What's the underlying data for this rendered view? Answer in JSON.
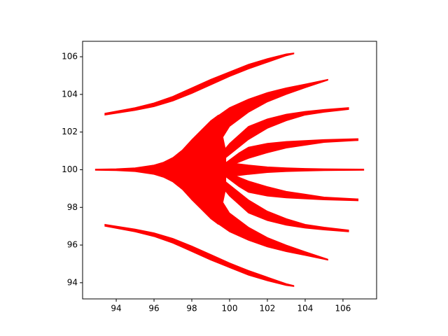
{
  "chart_data": {
    "type": "area",
    "xlim": [
      92.22,
      107.78
    ],
    "ylim": [
      93.14,
      106.82
    ],
    "xticks": [
      94,
      96,
      98,
      100,
      102,
      104,
      106
    ],
    "yticks": [
      94,
      96,
      98,
      100,
      102,
      104,
      106
    ],
    "grid": false,
    "series": [
      {
        "color": "#ff0000",
        "x": [
          93.4,
          95,
          96,
          97,
          98,
          99,
          100,
          101,
          102,
          103,
          103.4
        ],
        "upper": [
          103.0,
          103.3,
          103.55,
          103.9,
          104.35,
          104.8,
          105.2,
          105.6,
          105.9,
          106.15,
          106.2
        ],
        "lower": [
          102.9,
          103.15,
          103.35,
          103.65,
          104.05,
          104.5,
          104.95,
          105.35,
          105.7,
          106.05,
          106.15
        ]
      },
      {
        "color": "#ff0000",
        "x": [
          93.4,
          95,
          96,
          97,
          98,
          99,
          100,
          101,
          102,
          103,
          103.4
        ],
        "upper": [
          97.1,
          96.85,
          96.65,
          96.35,
          95.95,
          95.5,
          95.05,
          94.65,
          94.3,
          93.95,
          93.85
        ],
        "lower": [
          97.0,
          96.7,
          96.45,
          96.1,
          95.65,
          95.2,
          94.8,
          94.4,
          94.1,
          93.85,
          93.8
        ]
      },
      {
        "color": "#ff0000",
        "x": [
          92.9,
          94,
          95,
          96,
          96.5,
          97,
          97.5,
          98,
          98.5,
          99,
          99.4,
          99.8
        ],
        "upper": [
          100.03,
          100.05,
          100.1,
          100.25,
          100.4,
          100.65,
          101.05,
          101.6,
          102.1,
          102.6,
          102.9,
          101.0
        ],
        "lower": [
          99.97,
          99.95,
          99.9,
          99.75,
          99.6,
          99.35,
          98.95,
          98.4,
          97.9,
          97.4,
          97.1,
          99.0
        ]
      },
      {
        "color": "#ff0000",
        "x": [
          99,
          99.5,
          100,
          101,
          102,
          103,
          104,
          105.2
        ],
        "upper": [
          102.6,
          102.95,
          103.3,
          103.75,
          104.1,
          104.35,
          104.55,
          104.8
        ],
        "lower": [
          101.2,
          101.5,
          102.3,
          103.05,
          103.6,
          104.0,
          104.35,
          104.75
        ]
      },
      {
        "color": "#ff0000",
        "x": [
          99,
          99.5,
          100,
          101,
          102,
          103,
          104,
          105.2
        ],
        "upper": [
          98.8,
          98.5,
          97.7,
          96.95,
          96.4,
          96.0,
          95.65,
          95.25
        ],
        "lower": [
          97.4,
          97.05,
          96.7,
          96.25,
          95.9,
          95.65,
          95.45,
          95.2
        ]
      },
      {
        "color": "#ff0000",
        "x": [
          99.5,
          100,
          101,
          102,
          103,
          104,
          105,
          106.3
        ],
        "upper": [
          100.8,
          101.4,
          102.3,
          102.7,
          102.95,
          103.1,
          103.2,
          103.3
        ],
        "lower": [
          100.4,
          100.8,
          101.6,
          102.2,
          102.6,
          102.9,
          103.05,
          103.2
        ]
      },
      {
        "color": "#ff0000",
        "x": [
          99.5,
          100,
          101,
          102,
          103,
          104,
          105,
          106.3
        ],
        "upper": [
          99.6,
          99.2,
          98.4,
          97.8,
          97.4,
          97.1,
          96.95,
          96.8
        ],
        "lower": [
          99.2,
          98.6,
          97.7,
          97.3,
          97.05,
          96.9,
          96.8,
          96.7
        ]
      },
      {
        "color": "#ff0000",
        "x": [
          99.7,
          100.5,
          101,
          102,
          103,
          104,
          105,
          106.8
        ],
        "upper": [
          100.3,
          100.9,
          101.2,
          101.4,
          101.5,
          101.55,
          101.6,
          101.65
        ],
        "lower": [
          100.1,
          100.4,
          100.6,
          100.9,
          101.15,
          101.3,
          101.45,
          101.55
        ]
      },
      {
        "color": "#ff0000",
        "x": [
          99.7,
          100.5,
          101,
          102,
          103,
          104,
          105,
          106.8
        ],
        "upper": [
          99.9,
          99.6,
          99.4,
          99.1,
          98.85,
          98.7,
          98.55,
          98.45
        ],
        "lower": [
          99.7,
          99.1,
          98.8,
          98.6,
          98.5,
          98.45,
          98.4,
          98.35
        ]
      },
      {
        "color": "#ff0000",
        "x": [
          99.8,
          101,
          102,
          103,
          104,
          105,
          106,
          107.1
        ],
        "upper": [
          100.4,
          100.25,
          100.15,
          100.1,
          100.07,
          100.05,
          100.04,
          100.03
        ],
        "lower": [
          99.6,
          99.75,
          99.85,
          99.9,
          99.93,
          99.95,
          99.96,
          99.97
        ]
      }
    ]
  }
}
